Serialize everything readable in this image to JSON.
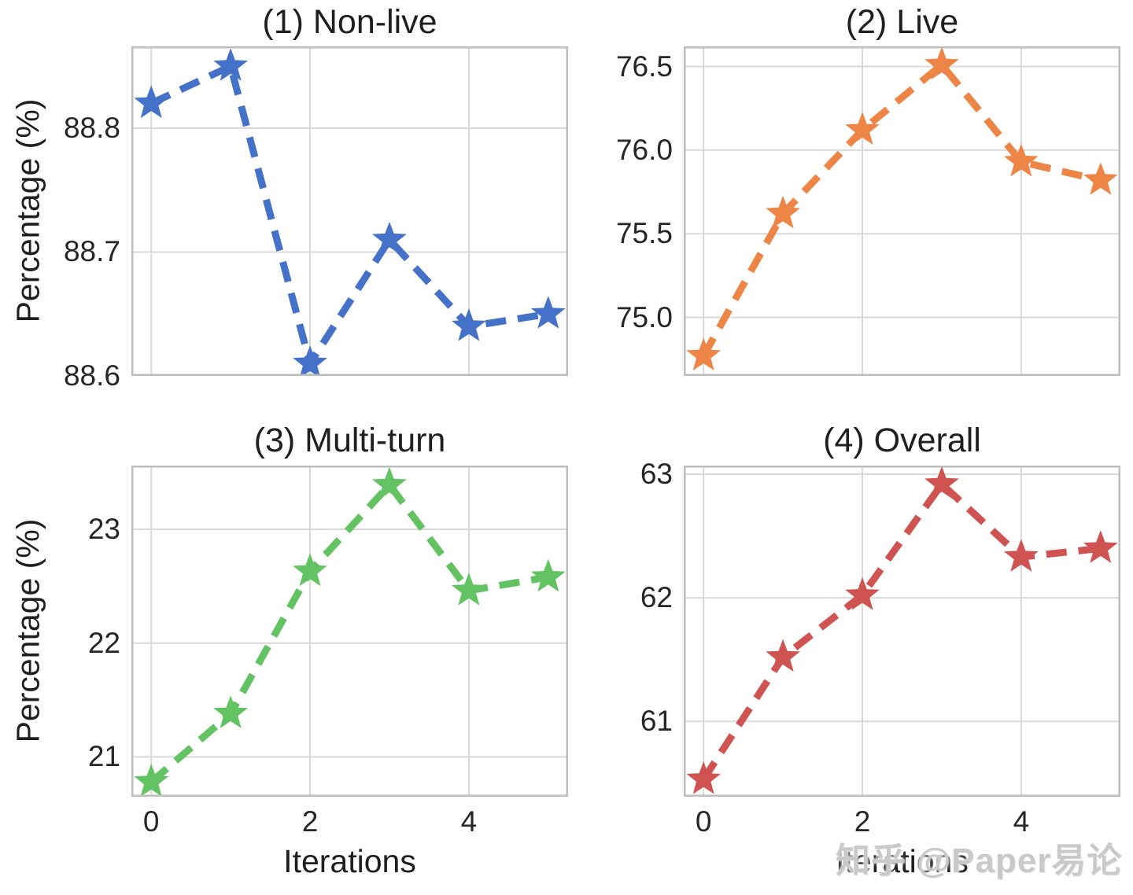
{
  "figure": {
    "background": "#ffffff",
    "watermark": "知乎 @Paper易论"
  },
  "axes": {
    "xlabel": "Iterations",
    "ylabel": "Percentage (%)",
    "grid_color": "#d9d9d9",
    "frame_color": "#bdbdbd",
    "text_color": "#262626"
  },
  "chart_data": [
    {
      "type": "line",
      "title": "(1) Non-live",
      "series_name": "Non-live",
      "color": "#4472C8",
      "marker": "star",
      "linestyle": "dashed",
      "x": [
        0,
        1,
        2,
        3,
        4,
        5
      ],
      "values": [
        88.82,
        88.85,
        88.61,
        88.71,
        88.64,
        88.65
      ],
      "xlim": [
        -0.25,
        5.25
      ],
      "ylim": [
        88.6,
        88.866
      ],
      "x_ticks": [
        0,
        2,
        4
      ],
      "x_tick_labels": [
        "0",
        "2",
        "4"
      ],
      "show_x_tick_labels": false,
      "y_ticks": [
        88.6,
        88.7,
        88.8
      ],
      "y_tick_labels": [
        "88.6",
        "88.7",
        "88.8"
      ],
      "grid": true
    },
    {
      "type": "line",
      "title": "(2) Live",
      "series_name": "Live",
      "color": "#ED8546",
      "marker": "star",
      "linestyle": "dashed",
      "x": [
        0,
        1,
        2,
        3,
        4,
        5
      ],
      "values": [
        74.77,
        75.62,
        76.12,
        76.51,
        75.93,
        75.82
      ],
      "xlim": [
        -0.25,
        5.25
      ],
      "ylim": [
        74.65,
        76.62
      ],
      "x_ticks": [
        0,
        2,
        4
      ],
      "x_tick_labels": [
        "0",
        "2",
        "4"
      ],
      "show_x_tick_labels": false,
      "y_ticks": [
        75.0,
        75.5,
        76.0,
        76.5
      ],
      "y_tick_labels": [
        "75.0",
        "75.5",
        "76.0",
        "76.5"
      ],
      "grid": true
    },
    {
      "type": "line",
      "title": "(3) Multi-turn",
      "series_name": "Multi-turn",
      "color": "#63C363",
      "marker": "star",
      "linestyle": "dashed",
      "x": [
        0,
        1,
        2,
        3,
        4,
        5
      ],
      "values": [
        20.78,
        21.38,
        22.63,
        23.39,
        22.46,
        22.58
      ],
      "xlim": [
        -0.25,
        5.25
      ],
      "ylim": [
        20.65,
        23.56
      ],
      "x_ticks": [
        0,
        2,
        4
      ],
      "x_tick_labels": [
        "0",
        "2",
        "4"
      ],
      "show_x_tick_labels": true,
      "y_ticks": [
        21,
        22,
        23
      ],
      "y_tick_labels": [
        "21",
        "22",
        "23"
      ],
      "grid": true
    },
    {
      "type": "line",
      "title": "(4) Overall",
      "series_name": "Overall",
      "color": "#CF5351",
      "marker": "star",
      "linestyle": "dashed",
      "x": [
        0,
        1,
        2,
        3,
        4,
        5
      ],
      "values": [
        60.53,
        61.52,
        62.02,
        62.92,
        62.33,
        62.4
      ],
      "xlim": [
        -0.25,
        5.25
      ],
      "ylim": [
        60.39,
        63.07
      ],
      "x_ticks": [
        0,
        2,
        4
      ],
      "x_tick_labels": [
        "0",
        "2",
        "4"
      ],
      "show_x_tick_labels": true,
      "y_ticks": [
        61,
        62,
        63
      ],
      "y_tick_labels": [
        "61",
        "62",
        "63"
      ],
      "grid": true
    }
  ]
}
